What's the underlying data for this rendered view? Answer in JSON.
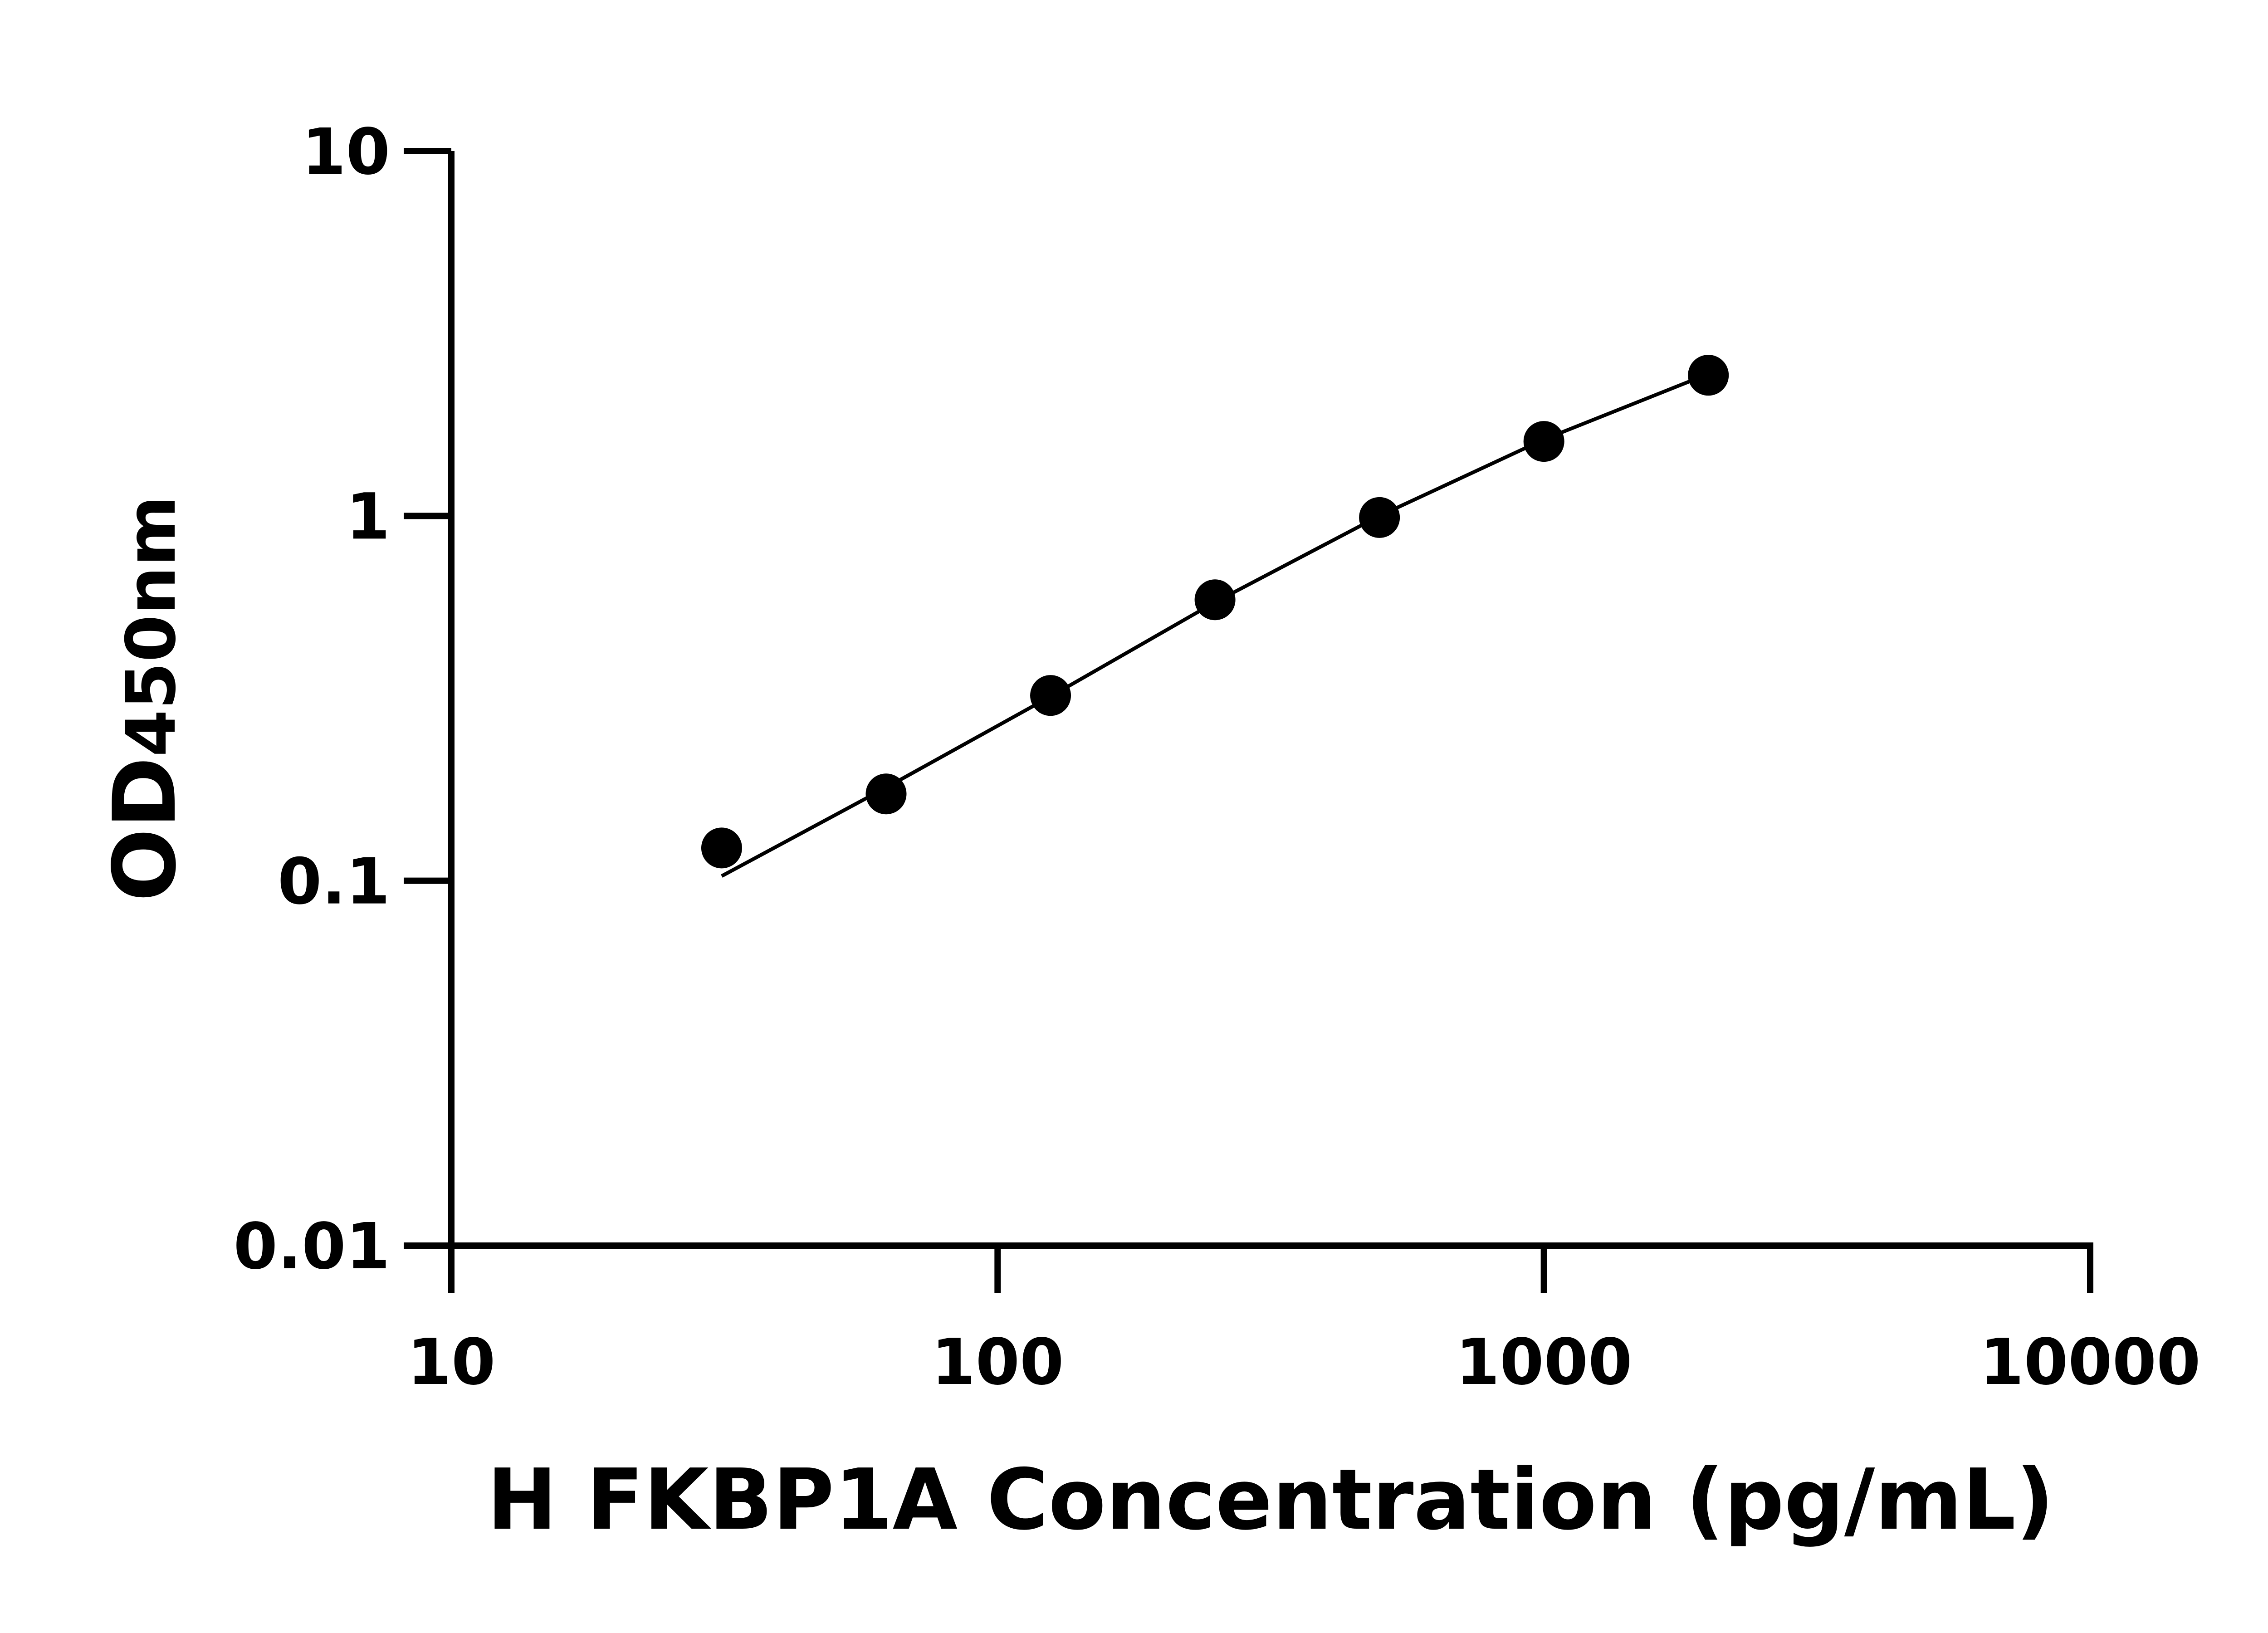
{
  "chart_data": {
    "type": "scatter",
    "title": "",
    "xlabel": "H FKBP1A Concentration (pg/mL)",
    "ylabel": "OD450nm",
    "ylabel_main": "OD",
    "ylabel_sub": "450nm",
    "x_scale": "log",
    "y_scale": "log",
    "xlim": [
      10,
      10000
    ],
    "ylim": [
      0.01,
      10
    ],
    "x_ticks": [
      "10",
      "100",
      "1000",
      "10000"
    ],
    "y_ticks": [
      "0.01",
      "0.1",
      "1",
      "10"
    ],
    "grid": false,
    "legend": "none",
    "color": "#000000",
    "series": [
      {
        "x": [
          31.25,
          62.5,
          125,
          250,
          500,
          1000,
          2000
        ],
        "y": [
          0.123,
          0.173,
          0.322,
          0.589,
          0.99,
          1.6,
          2.43
        ]
      }
    ],
    "fit_curve": {
      "x": [
        31.25,
        62.5,
        125,
        250,
        500,
        1000,
        2000
      ],
      "y": [
        0.103,
        0.18,
        0.32,
        0.58,
        1.0,
        1.62,
        2.45
      ]
    }
  }
}
